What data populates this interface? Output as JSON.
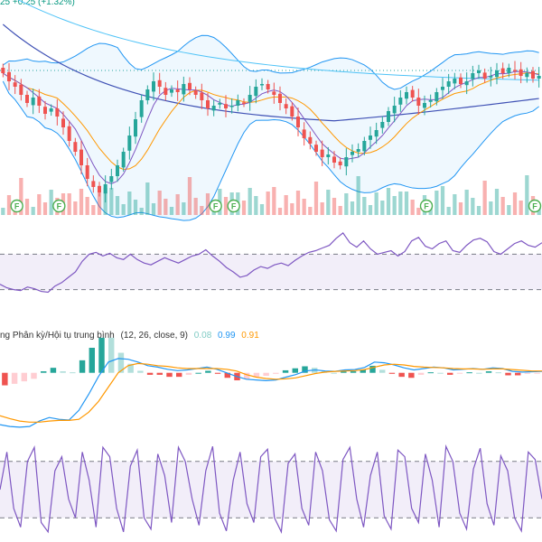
{
  "header": {
    "price_change_fragment": "25",
    "price_change": "+0.25 (+1.32%)"
  },
  "macd_panel": {
    "label": "ng Phân kỳ/Hội tụ trung bình",
    "params": "(12, 26, close, 9)",
    "hist_value": "0.08",
    "macd_value": "0.99",
    "signal_value": "0.91"
  },
  "event_markers": {
    "label": "F",
    "count": 6
  },
  "colors": {
    "up": "#26a69a",
    "down": "#ef5350",
    "macd_line": "#2196f3",
    "signal_line": "#ff9800",
    "purple": "#7e57c2",
    "band": "#2196f3",
    "marker": "#4caf50",
    "hist_up_strong": "#26a69a",
    "hist_up_weak": "#b2dfdb",
    "hist_down_strong": "#ef5350",
    "hist_down_weak": "#ffcdd2"
  },
  "chart_data": [
    {
      "type": "candlestick",
      "panel": "price",
      "overlays": [
        "bollinger-bands",
        "moving-average-fast",
        "moving-average-slow",
        "moving-average-long",
        "volume"
      ],
      "reference_line": "dotted",
      "closes": [
        24.8,
        24.5,
        24.3,
        24.0,
        23.7,
        23.9,
        23.6,
        23.3,
        23.5,
        23.2,
        22.8,
        22.3,
        21.9,
        21.4,
        20.9,
        20.6,
        20.4,
        20.7,
        21.0,
        21.4,
        21.9,
        22.5,
        23.1,
        23.8,
        24.2,
        24.5,
        24.3,
        24.0,
        24.2,
        24.1,
        24.4,
        24.2,
        24.0,
        23.8,
        23.5,
        23.6,
        23.7,
        23.5,
        23.6,
        23.8,
        23.7,
        24.0,
        24.3,
        24.4,
        24.2,
        24.0,
        23.7,
        23.5,
        23.2,
        22.8,
        22.4,
        22.2,
        21.9,
        21.7,
        21.8,
        21.5,
        21.4,
        21.7,
        21.9,
        22.0,
        22.3,
        22.5,
        22.7,
        23.0,
        23.4,
        23.6,
        23.9,
        24.1,
        23.9,
        23.6,
        23.7,
        23.8,
        24.1,
        24.3,
        24.5,
        24.6,
        24.4,
        24.5,
        24.8,
        24.9,
        24.6,
        24.7,
        24.9,
        24.8,
        25.0,
        24.9,
        24.7,
        24.8,
        24.6,
        24.7
      ]
    },
    {
      "type": "line",
      "panel": "oscillator-1",
      "range": [
        0,
        100
      ],
      "levels": [
        70,
        30
      ],
      "values": [
        36,
        32,
        30,
        29,
        33,
        31,
        28,
        27,
        34,
        38,
        44,
        50,
        62,
        70,
        72,
        68,
        71,
        66,
        64,
        70,
        64,
        60,
        58,
        62,
        66,
        63,
        60,
        64,
        68,
        70,
        75,
        68,
        62,
        55,
        50,
        44,
        46,
        52,
        56,
        54,
        58,
        60,
        57,
        63,
        68,
        72,
        74,
        77,
        80,
        88,
        94,
        83,
        78,
        85,
        76,
        70,
        72,
        74,
        68,
        73,
        85,
        89,
        79,
        76,
        82,
        85,
        74,
        72,
        80,
        86,
        88,
        84,
        73,
        70,
        76,
        82,
        85,
        80,
        78,
        83
      ]
    },
    {
      "type": "bar+line",
      "panel": "macd",
      "series": [
        {
          "name": "MACD",
          "values": [
            -1.45,
            -1.5,
            -1.52,
            -1.5,
            -1.35,
            -1.25,
            -1.3,
            -1.32,
            -1.05,
            -0.6,
            -0.1,
            0.3,
            0.4,
            0.38,
            0.3,
            0.2,
            0.16,
            0.1,
            0.06,
            0.08,
            0.12,
            0.16,
            0.1,
            0.0,
            -0.1,
            -0.18,
            -0.2,
            -0.22,
            -0.2,
            -0.12,
            -0.05,
            0.05,
            0.08,
            0.05,
            0.04,
            0.08,
            0.09,
            0.15,
            0.3,
            0.28,
            0.22,
            0.14,
            0.08,
            0.12,
            0.16,
            0.14,
            0.08,
            0.1,
            0.12,
            0.1,
            0.14,
            0.12,
            0.04,
            0.02,
            0.03,
            0.04
          ]
        },
        {
          "name": "Signal",
          "values": [
            -1.2,
            -1.28,
            -1.35,
            -1.38,
            -1.38,
            -1.35,
            -1.33,
            -1.33,
            -1.3,
            -1.1,
            -0.8,
            -0.4,
            0.0,
            0.2,
            0.26,
            0.24,
            0.2,
            0.18,
            0.14,
            0.12,
            0.12,
            0.12,
            0.12,
            0.1,
            0.05,
            -0.05,
            -0.12,
            -0.16,
            -0.18,
            -0.17,
            -0.14,
            -0.08,
            -0.02,
            0.02,
            0.04,
            0.05,
            0.06,
            0.09,
            0.16,
            0.22,
            0.24,
            0.22,
            0.18,
            0.16,
            0.15,
            0.14,
            0.12,
            0.11,
            0.11,
            0.1,
            0.11,
            0.11,
            0.09,
            0.07,
            0.05,
            0.05
          ]
        }
      ]
    },
    {
      "type": "line",
      "panel": "oscillator-2",
      "range": [
        0,
        100
      ],
      "levels": [
        80,
        20
      ],
      "values": [
        50,
        90,
        30,
        10,
        80,
        95,
        15,
        5,
        70,
        85,
        40,
        20,
        90,
        60,
        10,
        95,
        85,
        30,
        5,
        75,
        92,
        20,
        8,
        88,
        65,
        15,
        95,
        80,
        40,
        12,
        70,
        96,
        25,
        6,
        60,
        90,
        35,
        15,
        85,
        93,
        20,
        5,
        78,
        88,
        30,
        12,
        90,
        70,
        18,
        6,
        82,
        95,
        40,
        10,
        65,
        90,
        22,
        8,
        92,
        85,
        30,
        15,
        88,
        60,
        10,
        96,
        80,
        25,
        8,
        72,
        94,
        35,
        12,
        86,
        70,
        20,
        6,
        90,
        82,
        40
      ]
    }
  ]
}
